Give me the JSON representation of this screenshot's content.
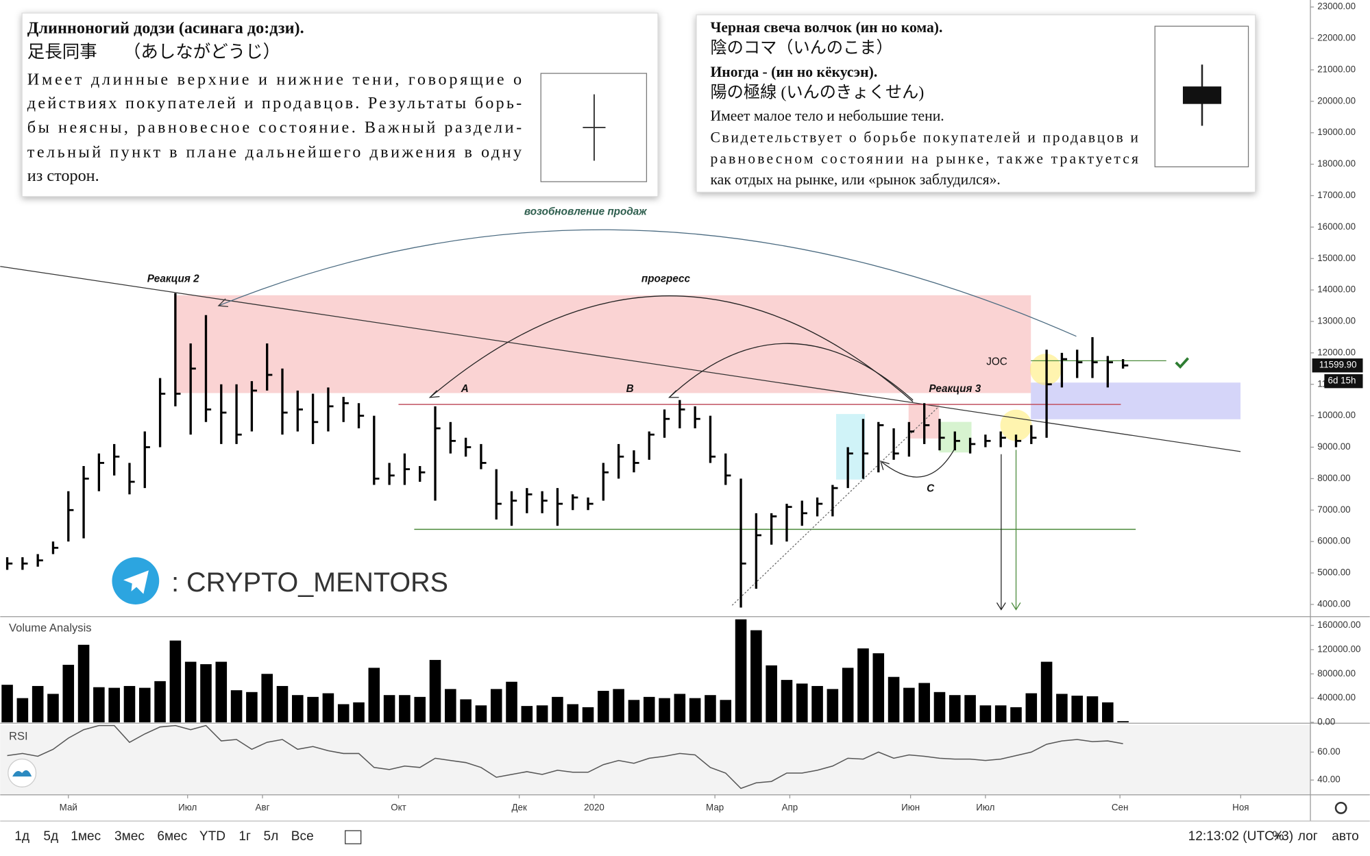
{
  "panels": [
    {
      "heading": [
        "Длинноногий додзи  (асинага до:дзи).",
        "足長同事　　（あしながどうじ）"
      ],
      "body": [
        "Имеет длинные верхние и нижние тени, говорящие о",
        "действиях покупателей и продавцов. Результаты борь-",
        "бы неясны, равновесное состояние. Важный раздели-",
        "тельный пункт в плане дальнейшего движения в одну",
        "из сторон."
      ]
    },
    {
      "heading": [
        "Черная свеча волчок (ин но  кома).",
        "陰のコマ（いんのこま）",
        "Иногда - (ин но  кёкусэн).",
        "陽の極線 (いんのきょくせん)"
      ],
      "body": [
        "Имеет малое тело и небольшие тени.",
        "Свидетельствует о борьбе покупателей и продавцов и",
        "равновесном состоянии на рынке, также трактуется",
        "как отдых на рынке, или «рынок заблудился»."
      ]
    }
  ],
  "annotations": {
    "resumption": "возобновление продаж",
    "reaction2": "Реакция 2",
    "progress": "прогресс",
    "a": "A",
    "b": "B",
    "reaction3": "Реакция 3",
    "joc": "JOC",
    "c": "C"
  },
  "watermark": ": CRYPTO_MENTORS",
  "toolbar": {
    "ranges": [
      "1д",
      "5д",
      "1мес",
      "3мес",
      "6мес",
      "YTD",
      "1г",
      "5л",
      "Все"
    ],
    "time": "12:13:02 (UTC+3)",
    "percent": "%",
    "log": "лог",
    "auto": "авто"
  },
  "chart_data": [
    {
      "type": "ohlc",
      "color": "#000000",
      "high": [
        5500,
        5500,
        5600,
        6000,
        7600,
        8400,
        8800,
        9100,
        8500,
        9500,
        11200,
        13900,
        12300,
        13200,
        11000,
        11000,
        11100,
        12300,
        11500,
        10800,
        10700,
        10900,
        10600,
        10400,
        10000,
        8500,
        8800,
        8400,
        10300,
        9800,
        9300,
        9100,
        8300,
        7600,
        7700,
        7600,
        7700,
        7500,
        7400,
        8500,
        9100,
        8900,
        9500,
        10200,
        10500,
        10300,
        10000,
        8800,
        8000,
        6900,
        6900,
        7200,
        7300,
        7400,
        7800,
        9000,
        9900,
        9800,
        9600,
        9800,
        10400,
        9900,
        9500,
        9300,
        9400,
        9500,
        9400,
        9700,
        12100,
        12000,
        12100,
        12500,
        11900,
        11800
      ],
      "low": [
        5100,
        5100,
        5200,
        5600,
        6000,
        6100,
        7600,
        8100,
        7500,
        7700,
        9000,
        10300,
        9400,
        9800,
        9100,
        9100,
        9500,
        10800,
        9400,
        9500,
        9100,
        9500,
        9800,
        9600,
        7800,
        7800,
        7800,
        7900,
        7300,
        8800,
        8700,
        8300,
        6700,
        6500,
        6900,
        6900,
        6500,
        7000,
        7000,
        7300,
        8000,
        8200,
        8600,
        9300,
        9600,
        9600,
        8500,
        7800,
        3900,
        4500,
        5900,
        6000,
        6500,
        6800,
        6800,
        7700,
        8000,
        8200,
        8600,
        8700,
        9100,
        8900,
        8900,
        8800,
        9000,
        9000,
        9000,
        9100,
        9300,
        10900,
        11200,
        11200,
        10900,
        11500
      ],
      "close": [
        5300,
        5300,
        5400,
        5800,
        7000,
        8000,
        8500,
        8700,
        7900,
        9000,
        10700,
        10700,
        11500,
        10200,
        10100,
        9400,
        10800,
        11300,
        10100,
        10200,
        9800,
        10300,
        10400,
        10000,
        8000,
        8100,
        8300,
        8200,
        9600,
        9200,
        9000,
        8500,
        7200,
        7300,
        7500,
        7300,
        7200,
        7400,
        7200,
        8200,
        8700,
        8500,
        9400,
        9900,
        10200,
        9900,
        8700,
        8100,
        5300,
        6200,
        6800,
        7100,
        6900,
        7200,
        7700,
        8800,
        8800,
        9700,
        8800,
        9500,
        9700,
        9300,
        9200,
        9100,
        9200,
        9300,
        9200,
        9300,
        11000,
        11800,
        11700,
        11700,
        11700,
        11600
      ],
      "xlim": [
        -0.46,
        85.26
      ],
      "xticks": [
        {
          "value": 4,
          "label": "Май"
        },
        {
          "value": 11.8,
          "label": "Июл"
        },
        {
          "value": 16.7,
          "label": "Авг"
        },
        {
          "value": 25.6,
          "label": "Окт"
        },
        {
          "value": 33.5,
          "label": "Дек"
        },
        {
          "value": 38.4,
          "label": "2020"
        },
        {
          "value": 46.3,
          "label": "Мар"
        },
        {
          "value": 51.2,
          "label": "Апр"
        },
        {
          "value": 59.1,
          "label": "Июн"
        },
        {
          "value": 64,
          "label": "Июл"
        },
        {
          "value": 72.8,
          "label": "Сен"
        },
        {
          "value": 80.7,
          "label": "Ноя"
        }
      ],
      "ylim": [
        3610,
        23222
      ],
      "yticks": [
        {
          "value": 4000,
          "label": "4000.00"
        },
        {
          "value": 5000,
          "label": "5000.00"
        },
        {
          "value": 6000,
          "label": "6000.00"
        },
        {
          "value": 7000,
          "label": "7000.00"
        },
        {
          "value": 8000,
          "label": "8000.00"
        },
        {
          "value": 9000,
          "label": "9000.00"
        },
        {
          "value": 10000,
          "label": "10000.00"
        },
        {
          "value": 11000,
          "label": "11000.00"
        },
        {
          "value": 12000,
          "label": "12000.00"
        },
        {
          "value": 13000,
          "label": "13000.00"
        },
        {
          "value": 14000,
          "label": "14000.00"
        },
        {
          "value": 15000,
          "label": "15000.00"
        },
        {
          "value": 16000,
          "label": "16000.00"
        },
        {
          "value": 17000,
          "label": "17000.00"
        },
        {
          "value": 18000,
          "label": "18000.00"
        },
        {
          "value": 19000,
          "label": "19000.00"
        },
        {
          "value": 20000,
          "label": "20000.00"
        },
        {
          "value": 21000,
          "label": "21000.00"
        },
        {
          "value": 22000,
          "label": "22000.00"
        },
        {
          "value": 23000,
          "label": "23000.00"
        }
      ],
      "last_price": {
        "value": 11599.9,
        "label": "11599.90"
      },
      "countdown": "6d 15h"
    },
    {
      "type": "bar",
      "title": "Volume Analysis",
      "color": "#000000",
      "values": [
        62000,
        40000,
        60000,
        47000,
        95000,
        128000,
        58000,
        57000,
        60000,
        57000,
        68000,
        135000,
        100000,
        96000,
        100000,
        53000,
        50000,
        80000,
        60000,
        45000,
        42000,
        48000,
        30000,
        33000,
        90000,
        45000,
        45000,
        42000,
        103000,
        55000,
        38000,
        28000,
        55000,
        67000,
        27000,
        28000,
        42000,
        30000,
        25000,
        52000,
        55000,
        37000,
        42000,
        40000,
        47000,
        40000,
        45000,
        37000,
        170000,
        152000,
        94000,
        70000,
        64000,
        60000,
        55000,
        90000,
        122000,
        114000,
        75000,
        57000,
        65000,
        50000,
        45000,
        45000,
        28000,
        28000,
        25000,
        48000,
        100000,
        47000,
        44000,
        43000,
        33000,
        2000
      ],
      "ylim": [
        0,
        174400
      ],
      "yticks": [
        {
          "value": 0,
          "label": "0.00"
        },
        {
          "value": 40000,
          "label": "40000.00"
        },
        {
          "value": 80000,
          "label": "80000.00"
        },
        {
          "value": 120000,
          "label": "120000.00"
        },
        {
          "value": 160000,
          "label": "160000.00"
        }
      ]
    },
    {
      "type": "line",
      "title": "RSI",
      "color": "#555555",
      "values": [
        57.5,
        59,
        57,
        62,
        70,
        76,
        79,
        79,
        67,
        73,
        78,
        79,
        76,
        79,
        68,
        69,
        62,
        67,
        69,
        62,
        64,
        61,
        59,
        59,
        49,
        47.5,
        50,
        49,
        55.6,
        54,
        52.5,
        49,
        42,
        44,
        46,
        44,
        47,
        45.6,
        45.6,
        51,
        54,
        52,
        55.6,
        57,
        59,
        58,
        49,
        45,
        34,
        38,
        39,
        45,
        45,
        47,
        50,
        55.6,
        55,
        60,
        55.6,
        58,
        57,
        55.6,
        55,
        55,
        54,
        55,
        57.5,
        60,
        65.6,
        68,
        69,
        67.5,
        68,
        66
      ],
      "ylim": [
        29.4,
        79.4
      ],
      "yticks": [
        {
          "value": 40,
          "label": "40.00"
        },
        {
          "value": 60,
          "label": "60.00"
        }
      ]
    }
  ]
}
